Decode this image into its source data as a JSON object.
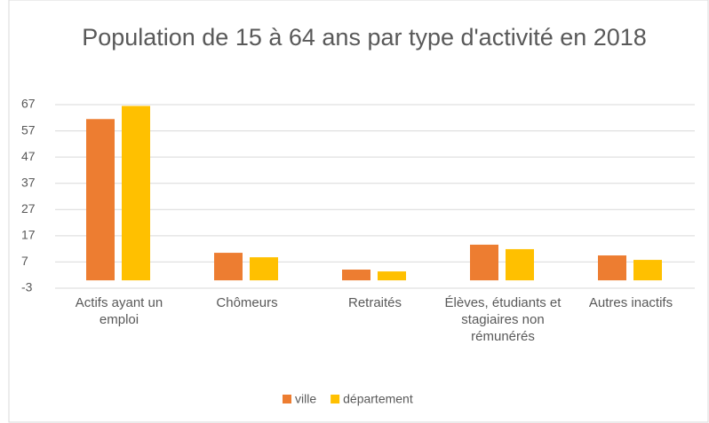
{
  "chart_data": {
    "type": "bar",
    "title": "Population de 15 à 64 ans par type d'activité en 2018",
    "categories": [
      "Actifs ayant un emploi",
      "Chômeurs",
      "Retraités",
      "Élèves, étudiants et stagiaires non rémunérés",
      "Autres inactifs"
    ],
    "series": [
      {
        "name": "ville",
        "color": "#ed7d31",
        "values": [
          61.5,
          10.5,
          4.1,
          13.6,
          9.5
        ]
      },
      {
        "name": "département",
        "color": "#ffc000",
        "values": [
          66.5,
          8.8,
          3.4,
          11.9,
          7.8
        ]
      }
    ],
    "ylim": [
      -3,
      67
    ],
    "yticks": [
      -3,
      7,
      17,
      27,
      37,
      47,
      57,
      67
    ],
    "grid": true,
    "legend": "bottom"
  }
}
